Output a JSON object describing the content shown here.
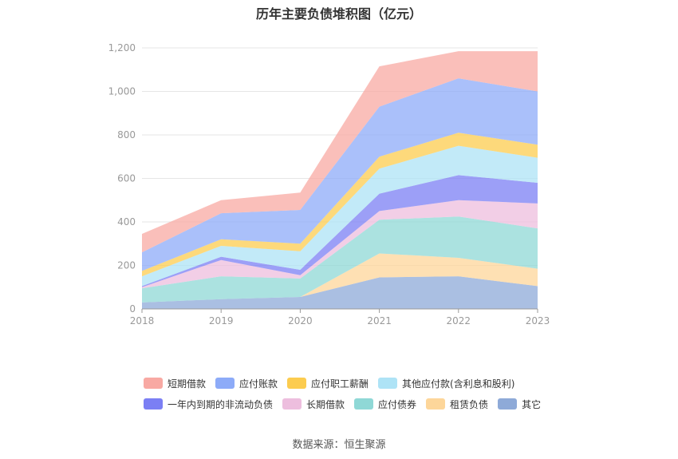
{
  "title": "历年主要负债堆积图（亿元）",
  "source": "数据来源：恒生聚源",
  "chart_data": {
    "type": "area",
    "stacked": true,
    "categories": [
      "2018",
      "2019",
      "2020",
      "2021",
      "2022",
      "2023"
    ],
    "ylim": [
      0,
      1200
    ],
    "yticks": [
      0,
      200,
      400,
      600,
      800,
      1000,
      1200
    ],
    "ytick_labels": [
      "0",
      "200",
      "400",
      "600",
      "800",
      "1,000",
      "1,200"
    ],
    "grid": true,
    "legend_position": "bottom",
    "series": [
      {
        "name": "其它",
        "color": "#8eaad8",
        "values": [
          30,
          45,
          55,
          145,
          150,
          105
        ]
      },
      {
        "name": "租赁负债",
        "color": "#fdd69a",
        "values": [
          0,
          0,
          0,
          110,
          85,
          80
        ]
      },
      {
        "name": "应付债券",
        "color": "#8fd8d6",
        "values": [
          65,
          105,
          85,
          155,
          190,
          185
        ]
      },
      {
        "name": "长期借款",
        "color": "#edbede",
        "values": [
          5,
          75,
          15,
          40,
          75,
          115
        ]
      },
      {
        "name": "一年内到期的非流动负债",
        "color": "#7b7ff4",
        "values": [
          5,
          15,
          25,
          80,
          115,
          95
        ]
      },
      {
        "name": "其他应付款(含利息和股利)",
        "color": "#aee3f6",
        "values": [
          45,
          50,
          85,
          115,
          135,
          115
        ]
      },
      {
        "name": "应付职工薪酬",
        "color": "#fccc4f",
        "values": [
          25,
          30,
          35,
          55,
          60,
          60
        ]
      },
      {
        "name": "应付账款",
        "color": "#8dabf8",
        "values": [
          85,
          120,
          155,
          230,
          250,
          245
        ]
      },
      {
        "name": "短期借款",
        "color": "#f8a9a3",
        "values": [
          85,
          60,
          80,
          185,
          125,
          185
        ]
      }
    ]
  },
  "legend_order": [
    {
      "name": "短期借款",
      "color": "#f8a9a3"
    },
    {
      "name": "应付账款",
      "color": "#8dabf8"
    },
    {
      "name": "应付职工薪酬",
      "color": "#fccc4f"
    },
    {
      "name": "其他应付款(含利息和股利)",
      "color": "#aee3f6"
    },
    {
      "name": "一年内到期的非流动负债",
      "color": "#7b7ff4"
    },
    {
      "name": "长期借款",
      "color": "#edbede"
    },
    {
      "name": "应付债券",
      "color": "#8fd8d6"
    },
    {
      "name": "租赁负债",
      "color": "#fdd69a"
    },
    {
      "name": "其它",
      "color": "#8eaad8"
    }
  ]
}
